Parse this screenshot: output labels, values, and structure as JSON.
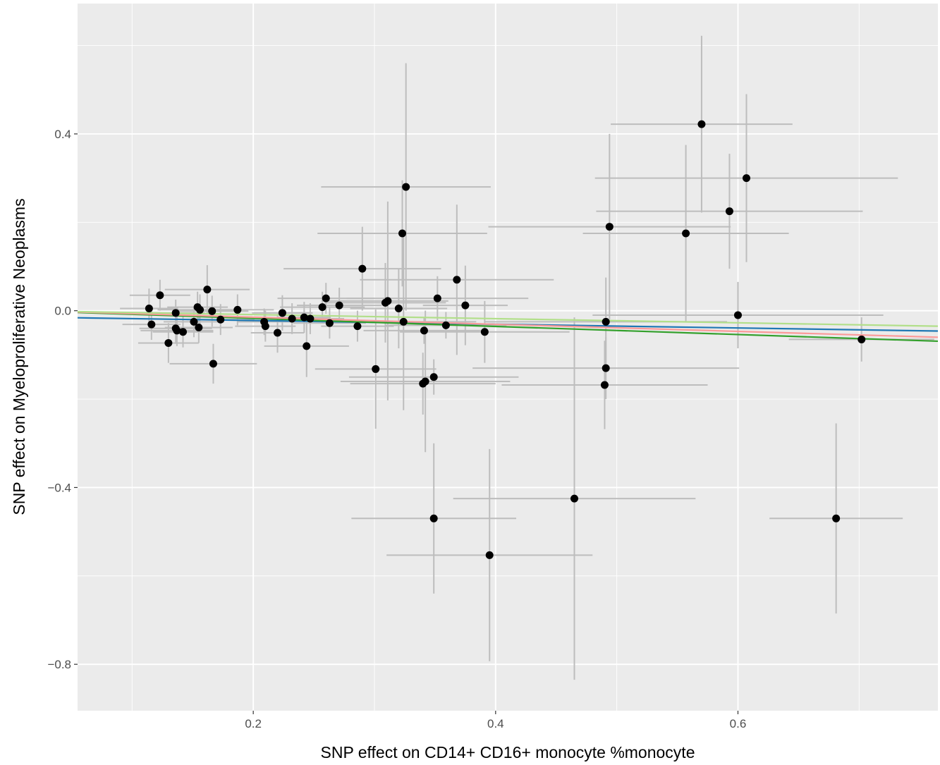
{
  "chart_data": {
    "type": "scatter",
    "title": "",
    "xlabel": "SNP effect on CD14+ CD16+ monocyte %monocyte",
    "ylabel": "SNP effect on Myeloproliferative Neoplasms",
    "xlim": [
      0.055,
      0.765
    ],
    "ylim": [
      -0.905,
      0.695
    ],
    "x_ticks": [
      0.2,
      0.4,
      0.6
    ],
    "x_tick_labels": [
      "0.2",
      "0.4",
      "0.6"
    ],
    "y_ticks": [
      -0.8,
      -0.4,
      0.0,
      0.4
    ],
    "y_tick_labels": [
      "−0.8",
      "−0.4",
      "0.0",
      "0.4"
    ],
    "grid": true,
    "colors": {
      "panel": "#ebebeb",
      "grid": "#ffffff",
      "points": "#000000",
      "error_bars": "#bdbdbd",
      "line_blue": "#1f78b4",
      "line_green": "#33a02c",
      "line_light_green": "#b2df8a",
      "line_pink": "#fb9a99"
    },
    "points": [
      {
        "x": 0.114,
        "y": 0.005,
        "xerr": 0.024,
        "yerr": 0.045
      },
      {
        "x": 0.116,
        "y": -0.031,
        "xerr": 0.024,
        "yerr": 0.035
      },
      {
        "x": 0.123,
        "y": 0.035,
        "xerr": 0.025,
        "yerr": 0.035
      },
      {
        "x": 0.13,
        "y": -0.073,
        "xerr": 0.025,
        "yerr": 0.045
      },
      {
        "x": 0.136,
        "y": -0.005,
        "xerr": 0.024,
        "yerr": 0.03
      },
      {
        "x": 0.136,
        "y": -0.04,
        "xerr": 0.03,
        "yerr": 0.035
      },
      {
        "x": 0.137,
        "y": -0.045,
        "xerr": 0.03,
        "yerr": 0.035
      },
      {
        "x": 0.142,
        "y": -0.048,
        "xerr": 0.025,
        "yerr": 0.035
      },
      {
        "x": 0.151,
        "y": -0.025,
        "xerr": 0.025,
        "yerr": 0.035
      },
      {
        "x": 0.154,
        "y": 0.008,
        "xerr": 0.025,
        "yerr": 0.035
      },
      {
        "x": 0.155,
        "y": -0.038,
        "xerr": 0.028,
        "yerr": 0.035
      },
      {
        "x": 0.156,
        "y": 0.002,
        "xerr": 0.035,
        "yerr": 0.035
      },
      {
        "x": 0.162,
        "y": 0.048,
        "xerr": 0.035,
        "yerr": 0.055
      },
      {
        "x": 0.166,
        "y": -0.001,
        "xerr": 0.03,
        "yerr": 0.035
      },
      {
        "x": 0.167,
        "y": -0.12,
        "xerr": 0.036,
        "yerr": 0.045
      },
      {
        "x": 0.173,
        "y": -0.02,
        "xerr": 0.028,
        "yerr": 0.035
      },
      {
        "x": 0.187,
        "y": 0.002,
        "xerr": 0.03,
        "yerr": 0.035
      },
      {
        "x": 0.209,
        "y": -0.025,
        "xerr": 0.022,
        "yerr": 0.03
      },
      {
        "x": 0.21,
        "y": -0.035,
        "xerr": 0.025,
        "yerr": 0.035
      },
      {
        "x": 0.22,
        "y": -0.05,
        "xerr": 0.022,
        "yerr": 0.045
      },
      {
        "x": 0.224,
        "y": -0.005,
        "xerr": 0.025,
        "yerr": 0.04
      },
      {
        "x": 0.232,
        "y": -0.018,
        "xerr": 0.025,
        "yerr": 0.035
      },
      {
        "x": 0.242,
        "y": -0.015,
        "xerr": 0.022,
        "yerr": 0.035
      },
      {
        "x": 0.244,
        "y": -0.08,
        "xerr": 0.035,
        "yerr": 0.07
      },
      {
        "x": 0.247,
        "y": -0.018,
        "xerr": 0.028,
        "yerr": 0.035
      },
      {
        "x": 0.257,
        "y": 0.008,
        "xerr": 0.035,
        "yerr": 0.035
      },
      {
        "x": 0.26,
        "y": 0.028,
        "xerr": 0.04,
        "yerr": 0.035
      },
      {
        "x": 0.263,
        "y": -0.028,
        "xerr": 0.03,
        "yerr": 0.035
      },
      {
        "x": 0.271,
        "y": 0.012,
        "xerr": 0.035,
        "yerr": 0.04
      },
      {
        "x": 0.286,
        "y": -0.035,
        "xerr": 0.03,
        "yerr": 0.035
      },
      {
        "x": 0.29,
        "y": 0.095,
        "xerr": 0.065,
        "yerr": 0.095
      },
      {
        "x": 0.301,
        "y": -0.132,
        "xerr": 0.05,
        "yerr": 0.135
      },
      {
        "x": 0.309,
        "y": 0.018,
        "xerr": 0.05,
        "yerr": 0.09
      },
      {
        "x": 0.311,
        "y": 0.022,
        "xerr": 0.05,
        "yerr": 0.225
      },
      {
        "x": 0.32,
        "y": 0.005,
        "xerr": 0.04,
        "yerr": 0.09
      },
      {
        "x": 0.323,
        "y": 0.175,
        "xerr": 0.07,
        "yerr": 0.12
      },
      {
        "x": 0.324,
        "y": -0.025,
        "xerr": 0.06,
        "yerr": 0.2
      },
      {
        "x": 0.326,
        "y": 0.28,
        "xerr": 0.07,
        "yerr": 0.28
      },
      {
        "x": 0.34,
        "y": -0.165,
        "xerr": 0.06,
        "yerr": 0.07
      },
      {
        "x": 0.341,
        "y": -0.045,
        "xerr": 0.05,
        "yerr": 0.03
      },
      {
        "x": 0.342,
        "y": -0.16,
        "xerr": 0.07,
        "yerr": 0.16
      },
      {
        "x": 0.349,
        "y": -0.15,
        "xerr": 0.07,
        "yerr": 0.04
      },
      {
        "x": 0.349,
        "y": -0.47,
        "xerr": 0.068,
        "yerr": 0.17
      },
      {
        "x": 0.352,
        "y": 0.028,
        "xerr": 0.075,
        "yerr": 0.05
      },
      {
        "x": 0.359,
        "y": -0.033,
        "xerr": 0.05,
        "yerr": 0.03
      },
      {
        "x": 0.368,
        "y": 0.07,
        "xerr": 0.08,
        "yerr": 0.17
      },
      {
        "x": 0.375,
        "y": 0.012,
        "xerr": 0.035,
        "yerr": 0.09
      },
      {
        "x": 0.391,
        "y": -0.048,
        "xerr": 0.07,
        "yerr": 0.07
      },
      {
        "x": 0.395,
        "y": -0.553,
        "xerr": 0.085,
        "yerr": 0.24
      },
      {
        "x": 0.465,
        "y": -0.425,
        "xerr": 0.1,
        "yerr": 0.41
      },
      {
        "x": 0.49,
        "y": -0.168,
        "xerr": 0.085,
        "yerr": 0.1
      },
      {
        "x": 0.491,
        "y": -0.13,
        "xerr": 0.11,
        "yerr": 0.07
      },
      {
        "x": 0.491,
        "y": -0.025,
        "xerr": 0.1,
        "yerr": 0.1
      },
      {
        "x": 0.494,
        "y": 0.19,
        "xerr": 0.1,
        "yerr": 0.21
      },
      {
        "x": 0.557,
        "y": 0.175,
        "xerr": 0.085,
        "yerr": 0.2
      },
      {
        "x": 0.57,
        "y": 0.422,
        "xerr": 0.075,
        "yerr": 0.2
      },
      {
        "x": 0.593,
        "y": 0.225,
        "xerr": 0.11,
        "yerr": 0.13
      },
      {
        "x": 0.6,
        "y": -0.01,
        "xerr": 0.12,
        "yerr": 0.075
      },
      {
        "x": 0.607,
        "y": 0.3,
        "xerr": 0.125,
        "yerr": 0.19
      },
      {
        "x": 0.681,
        "y": -0.47,
        "xerr": 0.055,
        "yerr": 0.215
      },
      {
        "x": 0.702,
        "y": -0.065,
        "xerr": 0.06,
        "yerr": 0.05
      }
    ],
    "lines": [
      {
        "color": "#1f78b4",
        "x": [
          0.055,
          0.765
        ],
        "y": [
          -0.016,
          -0.046
        ]
      },
      {
        "color": "#33a02c",
        "x": [
          0.055,
          0.765
        ],
        "y": [
          -0.004,
          -0.069
        ]
      },
      {
        "color": "#fb9a99",
        "x": [
          0.055,
          0.765
        ],
        "y": [
          -0.003,
          -0.06
        ]
      },
      {
        "color": "#b2df8a",
        "x": [
          0.055,
          0.765
        ],
        "y": [
          -0.002,
          -0.035
        ]
      }
    ]
  }
}
